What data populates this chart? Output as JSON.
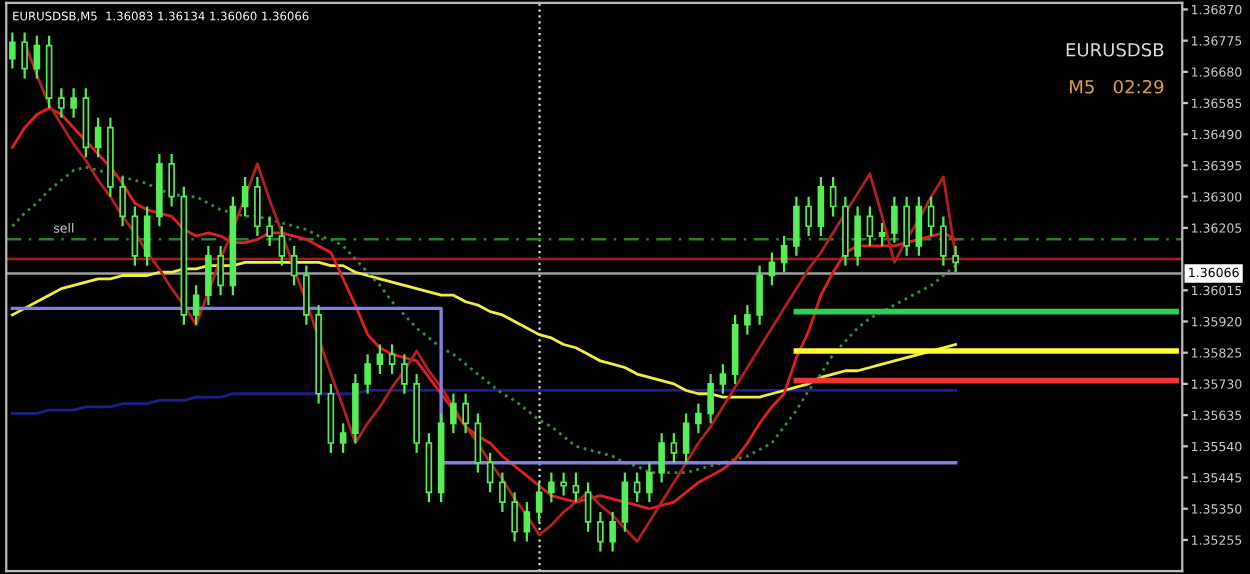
{
  "chart_data": {
    "type": "candlestick",
    "title": "EURUSDSB,M5  1.36083 1.36134 1.36060 1.36066",
    "annotations": [
      "EURUSDSB",
      "M5   02:29"
    ],
    "categories": [
      null,
      null,
      null,
      null,
      null,
      null,
      null,
      null,
      null,
      null,
      null,
      null,
      null,
      null,
      null,
      null,
      null,
      null,
      null,
      null,
      null,
      null,
      null,
      null,
      null,
      null,
      null,
      null,
      null,
      null,
      null,
      null,
      null,
      null,
      null,
      null,
      null,
      null,
      null,
      null,
      null,
      null,
      null,
      null,
      null,
      null,
      null,
      null,
      null,
      null,
      null,
      null,
      null,
      null,
      null,
      null,
      null,
      null,
      null,
      null,
      null,
      null,
      null,
      null,
      null,
      null,
      null,
      null,
      null,
      null,
      null,
      null,
      null,
      null,
      null,
      null,
      null,
      null,
      null,
      null,
      null,
      null,
      null,
      null,
      null,
      null,
      null,
      null,
      null,
      null,
      null,
      null,
      null,
      null,
      null,
      null
    ],
    "color": "#55ee55",
    "ohlc": [
      [
        1.3672,
        1.368,
        1.3669,
        1.3677
      ],
      [
        1.3677,
        1.368,
        1.3666,
        1.3669
      ],
      [
        1.3669,
        1.3679,
        1.3666,
        1.3676
      ],
      [
        1.3676,
        1.3679,
        1.3657,
        1.366
      ],
      [
        1.366,
        1.3663,
        1.3654,
        1.3657
      ],
      [
        1.3657,
        1.3663,
        1.3654,
        1.366
      ],
      [
        1.366,
        1.3663,
        1.3642,
        1.3645
      ],
      [
        1.3645,
        1.3654,
        1.3642,
        1.3651
      ],
      [
        1.3651,
        1.3654,
        1.363,
        1.3633
      ],
      [
        1.3633,
        1.3636,
        1.3621,
        1.3624
      ],
      [
        1.3624,
        1.3627,
        1.3609,
        1.3612
      ],
      [
        1.3612,
        1.3627,
        1.3609,
        1.3624
      ],
      [
        1.3624,
        1.3643,
        1.3621,
        1.364
      ],
      [
        1.364,
        1.3643,
        1.3627,
        1.363
      ],
      [
        1.363,
        1.3633,
        1.3591,
        1.3594
      ],
      [
        1.3594,
        1.3603,
        1.3591,
        1.36
      ],
      [
        1.36,
        1.3615,
        1.3597,
        1.3612
      ],
      [
        1.3612,
        1.3615,
        1.36,
        1.3603
      ],
      [
        1.3603,
        1.363,
        1.36,
        1.3627
      ],
      [
        1.3627,
        1.3636,
        1.3624,
        1.3633
      ],
      [
        1.3633,
        1.3636,
        1.3618,
        1.3621
      ],
      [
        1.3621,
        1.3624,
        1.3615,
        1.3618
      ],
      [
        1.3618,
        1.3621,
        1.3609,
        1.3612
      ],
      [
        1.3612,
        1.3615,
        1.3603,
        1.3606
      ],
      [
        1.3606,
        1.3609,
        1.3591,
        1.3594
      ],
      [
        1.3594,
        1.3597,
        1.3567,
        1.357
      ],
      [
        1.357,
        1.3573,
        1.3552,
        1.3555
      ],
      [
        1.3555,
        1.3561,
        1.3552,
        1.3558
      ],
      [
        1.3558,
        1.3576,
        1.3555,
        1.3573
      ],
      [
        1.3573,
        1.3582,
        1.357,
        1.3579
      ],
      [
        1.3579,
        1.3585,
        1.3576,
        1.3582
      ],
      [
        1.3582,
        1.3585,
        1.3576,
        1.3579
      ],
      [
        1.3579,
        1.3582,
        1.357,
        1.3573
      ],
      [
        1.3573,
        1.3576,
        1.3552,
        1.3555
      ],
      [
        1.3555,
        1.3558,
        1.3537,
        1.354
      ],
      [
        1.354,
        1.3564,
        1.3537,
        1.3561
      ],
      [
        1.3561,
        1.357,
        1.3558,
        1.3567
      ],
      [
        1.3567,
        1.357,
        1.3558,
        1.3561
      ],
      [
        1.3561,
        1.3564,
        1.3546,
        1.3549
      ],
      [
        1.3549,
        1.3552,
        1.354,
        1.3543
      ],
      [
        1.3543,
        1.3546,
        1.3534,
        1.3537
      ],
      [
        1.3537,
        1.354,
        1.3525,
        1.3528
      ],
      [
        1.3528,
        1.3537,
        1.3525,
        1.3534
      ],
      [
        1.3534,
        1.3543,
        1.3531,
        1.354
      ],
      [
        1.354,
        1.3546,
        1.3537,
        1.3543
      ],
      [
        1.3543,
        1.3546,
        1.3539,
        1.3542
      ],
      [
        1.3542,
        1.3546,
        1.3537,
        1.354
      ],
      [
        1.354,
        1.3543,
        1.3528,
        1.3531
      ],
      [
        1.3531,
        1.3534,
        1.3522,
        1.3525
      ],
      [
        1.3525,
        1.3534,
        1.3522,
        1.3531
      ],
      [
        1.3531,
        1.3546,
        1.3528,
        1.3543
      ],
      [
        1.3543,
        1.3546,
        1.3537,
        1.354
      ],
      [
        1.354,
        1.3549,
        1.3537,
        1.3546
      ],
      [
        1.3546,
        1.3558,
        1.3543,
        1.3555
      ],
      [
        1.3555,
        1.3558,
        1.3549,
        1.3552
      ],
      [
        1.3552,
        1.3564,
        1.3549,
        1.3561
      ],
      [
        1.3561,
        1.3567,
        1.3558,
        1.3564
      ],
      [
        1.3564,
        1.3576,
        1.3561,
        1.3573
      ],
      [
        1.3573,
        1.3579,
        1.357,
        1.3576
      ],
      [
        1.3576,
        1.3594,
        1.3573,
        1.3591
      ],
      [
        1.3591,
        1.3597,
        1.3588,
        1.3594
      ],
      [
        1.3594,
        1.3609,
        1.3591,
        1.3606
      ],
      [
        1.3606,
        1.3613,
        1.3603,
        1.361
      ],
      [
        1.361,
        1.3618,
        1.3607,
        1.3615
      ],
      [
        1.3615,
        1.363,
        1.3612,
        1.3627
      ],
      [
        1.3627,
        1.363,
        1.3618,
        1.3621
      ],
      [
        1.3621,
        1.3636,
        1.3618,
        1.3633
      ],
      [
        1.3633,
        1.3636,
        1.3624,
        1.3627
      ],
      [
        1.3627,
        1.363,
        1.3609,
        1.3612
      ],
      [
        1.3612,
        1.3627,
        1.3609,
        1.3624
      ],
      [
        1.3624,
        1.3627,
        1.3615,
        1.3618
      ],
      [
        1.3618,
        1.3622,
        1.3615,
        1.3619
      ],
      [
        1.3619,
        1.363,
        1.3616,
        1.3627
      ],
      [
        1.3627,
        1.363,
        1.3612,
        1.3615
      ],
      [
        1.3615,
        1.363,
        1.3612,
        1.3627
      ],
      [
        1.3627,
        1.363,
        1.3618,
        1.3621
      ],
      [
        1.3621,
        1.3624,
        1.3609,
        1.3612
      ],
      [
        1.3612,
        1.3615,
        1.3607,
        1.361
      ],
      null,
      null,
      null,
      null,
      null,
      null,
      null,
      null,
      null,
      null,
      null,
      null,
      null,
      null,
      null,
      null,
      null,
      null
    ],
    "series": [
      {
        "type": "line",
        "color": "#1e1e8c",
        "line_style": "solid",
        "values": [
          1.3564,
          1.3564,
          1.3564,
          1.3565,
          1.3565,
          1.3565,
          1.3566,
          1.3566,
          1.3566,
          1.3567,
          1.3567,
          1.3567,
          1.3568,
          1.3568,
          1.3568,
          1.3569,
          1.3569,
          1.3569,
          1.357,
          1.357,
          1.357,
          1.357,
          1.357,
          1.357,
          1.357,
          1.357,
          1.357,
          1.357,
          1.357,
          1.3571,
          1.3571,
          1.3571,
          1.3571,
          1.3571,
          1.3571,
          1.3571,
          1.3571,
          1.3571,
          1.3571,
          1.3571,
          1.3571,
          1.3571,
          1.3571,
          1.3571,
          1.3571,
          1.3571,
          1.3571,
          1.3571,
          1.3571,
          1.3571,
          1.3571,
          1.3571,
          1.3571,
          1.3571,
          1.3571,
          1.3571,
          1.3571,
          1.3571,
          1.3571,
          1.3571,
          1.3571,
          1.3571,
          1.3571,
          1.3571,
          1.3571,
          1.3571,
          1.3571,
          1.3571,
          1.3571,
          1.3571,
          1.3571,
          1.3571,
          1.3571,
          1.3571,
          1.3571,
          1.3571,
          1.3571,
          1.3571,
          null,
          null,
          null,
          null,
          null,
          null,
          null,
          null,
          null,
          null,
          null,
          null,
          null,
          null,
          null,
          null,
          null,
          null
        ]
      },
      {
        "type": "line",
        "color": "#eeee44",
        "line_style": "solid",
        "values": [
          1.3594,
          1.3596,
          1.3598,
          1.36,
          1.3602,
          1.3603,
          1.3604,
          1.3605,
          1.3605,
          1.3606,
          1.3606,
          1.3606,
          1.3607,
          1.3607,
          1.3608,
          1.3608,
          1.3609,
          1.3609,
          1.3609,
          1.361,
          1.361,
          1.361,
          1.361,
          1.361,
          1.361,
          1.361,
          1.3609,
          1.3609,
          1.3607,
          1.3606,
          1.3605,
          1.3604,
          1.3603,
          1.3602,
          1.3601,
          1.36,
          1.36,
          1.3598,
          1.3597,
          1.3595,
          1.3594,
          1.3592,
          1.359,
          1.3588,
          1.3587,
          1.3585,
          1.3584,
          1.3582,
          1.358,
          1.3579,
          1.3578,
          1.3576,
          1.3575,
          1.3574,
          1.3573,
          1.3571,
          1.357,
          1.357,
          1.3569,
          1.3569,
          1.3569,
          1.3569,
          1.357,
          1.3571,
          1.3572,
          1.3573,
          1.3575,
          1.3576,
          1.3577,
          1.3577,
          1.3578,
          1.3579,
          1.358,
          1.3581,
          1.3582,
          1.3583,
          1.3584,
          1.3585,
          null,
          null,
          null,
          null,
          null,
          null,
          null,
          null,
          null,
          null,
          null,
          null,
          null,
          null,
          null,
          null,
          null,
          null
        ]
      },
      {
        "type": "line",
        "color": "#3c8c3c",
        "line_style": "dotted",
        "values": [
          1.3621,
          1.3625,
          1.3628,
          1.3632,
          1.3635,
          1.3638,
          1.3639,
          1.3638,
          1.3637,
          1.3636,
          1.3635,
          1.3634,
          1.3632,
          1.3631,
          1.363,
          1.363,
          1.3628,
          1.3626,
          1.3625,
          1.3624,
          1.3624,
          1.3623,
          1.3622,
          1.3621,
          1.362,
          1.3618,
          1.3617,
          1.3615,
          1.3611,
          1.3607,
          1.3603,
          1.3598,
          1.3594,
          1.359,
          1.3587,
          1.3584,
          1.3582,
          1.3579,
          1.3576,
          1.3573,
          1.357,
          1.3568,
          1.3565,
          1.3562,
          1.356,
          1.3557,
          1.3554,
          1.3553,
          1.3552,
          1.3551,
          1.3549,
          1.3548,
          1.3546,
          1.3546,
          1.3546,
          1.3546,
          1.3547,
          1.3548,
          1.3549,
          1.355,
          1.3551,
          1.3553,
          1.3555,
          1.356,
          1.3565,
          1.3571,
          1.3576,
          1.3582,
          1.3586,
          1.359,
          1.3593,
          1.3595,
          1.3597,
          1.3599,
          1.3601,
          1.3603,
          1.3606,
          1.3609,
          null,
          null,
          null,
          null,
          null,
          null,
          null,
          null,
          null,
          null,
          null,
          null,
          null,
          null,
          null,
          null,
          null,
          null
        ]
      },
      {
        "type": "line",
        "color": "#e02020",
        "line_style": "solid",
        "values": [
          1.3645,
          1.3651,
          1.3655,
          1.3657,
          1.3655,
          1.3651,
          1.3647,
          1.3643,
          1.3639,
          1.3634,
          1.3628,
          1.3626,
          1.3625,
          1.3624,
          1.362,
          1.3618,
          1.3619,
          1.3618,
          1.3616,
          1.3616,
          1.3617,
          1.3619,
          1.3619,
          1.3618,
          1.3617,
          1.3615,
          1.3613,
          1.3605,
          1.3597,
          1.3588,
          1.3584,
          1.3582,
          1.3581,
          1.358,
          1.3575,
          1.357,
          1.3565,
          1.356,
          1.3557,
          1.3555,
          1.3551,
          1.3548,
          1.3545,
          1.3542,
          1.3539,
          1.3538,
          1.3537,
          1.3538,
          1.3539,
          1.3538,
          1.3537,
          1.3536,
          1.3535,
          1.3536,
          1.3537,
          1.354,
          1.3543,
          1.3545,
          1.3547,
          1.355,
          1.3555,
          1.3561,
          1.3566,
          1.357,
          1.3581,
          1.3589,
          1.36,
          1.3607,
          1.3613,
          1.3615,
          1.3615,
          1.3615,
          1.3615,
          1.3616,
          1.3617,
          1.3618,
          1.3619,
          1.3617,
          null,
          null,
          null,
          null,
          null,
          null,
          null,
          null,
          null,
          null,
          null,
          null,
          null,
          null,
          null,
          null,
          null,
          null
        ]
      },
      {
        "type": "line",
        "color": "#b02020",
        "line_style": "solid",
        "values": [
          null,
          1.3677,
          1.3667,
          1.3658,
          1.3652,
          1.3646,
          1.3641,
          1.3635,
          1.363,
          1.3624,
          1.3619,
          1.3613,
          1.3608,
          1.3602,
          1.3597,
          1.3591,
          1.3601,
          1.3611,
          1.362,
          1.363,
          1.364,
          1.3629,
          1.3619,
          1.3608,
          1.3598,
          1.3587,
          1.3576,
          1.3566,
          1.3555,
          1.3561,
          1.3566,
          1.3572,
          1.3577,
          1.3583,
          1.3577,
          1.3572,
          1.3566,
          1.356,
          1.3555,
          1.3549,
          1.3544,
          1.3538,
          1.3533,
          1.3527,
          1.353,
          1.3534,
          1.3537,
          1.354,
          1.3536,
          1.3533,
          1.3529,
          1.3525,
          1.3531,
          1.3537,
          1.3543,
          1.3549,
          1.3555,
          1.356,
          1.3566,
          1.3572,
          1.3578,
          1.3584,
          1.359,
          1.3596,
          1.3602,
          1.3608,
          1.3613,
          1.3619,
          1.3625,
          1.3631,
          1.3637,
          1.3624,
          1.361,
          1.3617,
          1.3623,
          1.363,
          1.3636,
          1.3612,
          null,
          null,
          null,
          null,
          null,
          null,
          null,
          null,
          null,
          null,
          null,
          null,
          null,
          null,
          null,
          null,
          null,
          null
        ]
      },
      {
        "type": "step",
        "color": "#8080e0",
        "line_style": "solid",
        "values": [
          1.3596,
          1.3596,
          1.3596,
          1.3596,
          1.3596,
          1.3596,
          1.3596,
          1.3596,
          1.3596,
          1.3596,
          1.3596,
          1.3596,
          1.3596,
          1.3596,
          1.3596,
          1.3596,
          1.3596,
          1.3596,
          1.3596,
          1.3596,
          1.3596,
          1.3596,
          1.3596,
          1.3596,
          1.3596,
          1.3596,
          1.3596,
          1.3596,
          1.3596,
          1.3596,
          1.3596,
          1.3596,
          1.3596,
          1.3596,
          1.3596,
          1.3596,
          1.3549,
          1.3549,
          1.3549,
          1.3549,
          1.3549,
          1.3549,
          1.3549,
          1.3549,
          1.3549,
          1.3549,
          1.3549,
          1.3549,
          1.3549,
          1.3549,
          1.3549,
          1.3549,
          1.3549,
          1.3549,
          1.3549,
          1.3549,
          1.3549,
          1.3549,
          1.3549,
          1.3549,
          1.3549,
          1.3549,
          1.3549,
          1.3549,
          1.3549,
          1.3549,
          1.3549,
          1.3549,
          1.3549,
          1.3549,
          1.3549,
          1.3549,
          1.3549,
          1.3549,
          1.3549,
          1.3549,
          1.3549,
          1.3549,
          null,
          null,
          null,
          null,
          null,
          null,
          null,
          null,
          null,
          null,
          null,
          null,
          null,
          null,
          null,
          null,
          null,
          null
        ]
      },
      {
        "type": "line",
        "color": "#33cc55",
        "line_style": "solid",
        "values": [
          null,
          null,
          null,
          null,
          null,
          null,
          null,
          null,
          null,
          null,
          null,
          null,
          null,
          null,
          null,
          null,
          null,
          null,
          null,
          null,
          null,
          null,
          null,
          null,
          null,
          null,
          null,
          null,
          null,
          null,
          null,
          null,
          null,
          null,
          null,
          null,
          null,
          null,
          null,
          null,
          null,
          null,
          null,
          null,
          null,
          null,
          null,
          null,
          null,
          null,
          null,
          null,
          null,
          null,
          null,
          null,
          null,
          null,
          null,
          null,
          null,
          null,
          null,
          null,
          1.3595,
          1.3595,
          1.3595,
          1.3595,
          1.3595,
          1.3595,
          1.3595,
          1.3595,
          1.3595,
          1.3595,
          1.3595,
          1.3595,
          1.3595,
          1.3595,
          1.3595,
          1.3595,
          1.3595,
          1.3595,
          1.3595,
          1.3595,
          1.3595,
          1.3595,
          1.3595,
          1.3595,
          1.3595,
          1.3595,
          1.3595,
          1.3595,
          1.3595,
          1.3595,
          1.3595,
          1.3595
        ]
      },
      {
        "type": "line",
        "color": "#ffff33",
        "line_style": "solid",
        "values": [
          null,
          null,
          null,
          null,
          null,
          null,
          null,
          null,
          null,
          null,
          null,
          null,
          null,
          null,
          null,
          null,
          null,
          null,
          null,
          null,
          null,
          null,
          null,
          null,
          null,
          null,
          null,
          null,
          null,
          null,
          null,
          null,
          null,
          null,
          null,
          null,
          null,
          null,
          null,
          null,
          null,
          null,
          null,
          null,
          null,
          null,
          null,
          null,
          null,
          null,
          null,
          null,
          null,
          null,
          null,
          null,
          null,
          null,
          null,
          null,
          null,
          null,
          null,
          null,
          1.3583,
          1.3583,
          1.3583,
          1.3583,
          1.3583,
          1.3583,
          1.3583,
          1.3583,
          1.3583,
          1.3583,
          1.3583,
          1.3583,
          1.3583,
          1.3583,
          1.3583,
          1.3583,
          1.3583,
          1.3583,
          1.3583,
          1.3583,
          1.3583,
          1.3583,
          1.3583,
          1.3583,
          1.3583,
          1.3583,
          1.3583,
          1.3583,
          1.3583,
          1.3583,
          1.3583,
          1.3583
        ]
      },
      {
        "type": "line",
        "color": "#ee3333",
        "line_style": "solid",
        "values": [
          null,
          null,
          null,
          null,
          null,
          null,
          null,
          null,
          null,
          null,
          null,
          null,
          null,
          null,
          null,
          null,
          null,
          null,
          null,
          null,
          null,
          null,
          null,
          null,
          null,
          null,
          null,
          null,
          null,
          null,
          null,
          null,
          null,
          null,
          null,
          null,
          null,
          null,
          null,
          null,
          null,
          null,
          null,
          null,
          null,
          null,
          null,
          null,
          null,
          null,
          null,
          null,
          null,
          null,
          null,
          null,
          null,
          null,
          null,
          null,
          null,
          null,
          null,
          null,
          1.3574,
          1.3574,
          1.3574,
          1.3574,
          1.3574,
          1.3574,
          1.3574,
          1.3574,
          1.3574,
          1.3574,
          1.3574,
          1.3574,
          1.3574,
          1.3574,
          1.3574,
          1.3574,
          1.3574,
          1.3574,
          1.3574,
          1.3574,
          1.3574,
          1.3574,
          1.3574,
          1.3574,
          1.3574,
          1.3574,
          1.3574,
          1.3574,
          1.3574,
          1.3574,
          1.3574,
          1.3574
        ]
      }
    ],
    "ref_lines": [
      {
        "axis": "y",
        "value": 1.3617,
        "label": "sell",
        "color": "#2e7d2e",
        "line_style": "dashed"
      },
      {
        "axis": "y",
        "value": 1.3611,
        "color": "#a02020",
        "line_style": "solid"
      },
      {
        "axis": "y",
        "value": 1.36066,
        "label": "1.36066",
        "color": "#a0a0a0",
        "line_style": "solid"
      }
    ],
    "ylim": [
      1.3516,
      1.3689
    ],
    "yticks": [
      {
        "value": 1.3687,
        "label": "1.36870"
      },
      {
        "value": 1.36775,
        "label": "1.36775"
      },
      {
        "value": 1.3668,
        "label": "1.36680"
      },
      {
        "value": 1.36585,
        "label": "1.36585"
      },
      {
        "value": 1.3649,
        "label": "1.36490"
      },
      {
        "value": 1.36395,
        "label": "1.36395"
      },
      {
        "value": 1.363,
        "label": "1.36300"
      },
      {
        "value": 1.36205,
        "label": "1.36205"
      },
      {
        "value": 1.36015,
        "label": "1.36015"
      },
      {
        "value": 1.3592,
        "label": "1.35920"
      },
      {
        "value": 1.35825,
        "label": "1.35825"
      },
      {
        "value": 1.3573,
        "label": "1.35730"
      },
      {
        "value": 1.35635,
        "label": "1.35635"
      },
      {
        "value": 1.3554,
        "label": "1.35540"
      },
      {
        "value": 1.35445,
        "label": "1.35445"
      },
      {
        "value": 1.3535,
        "label": "1.35350"
      },
      {
        "value": 1.35255,
        "label": "1.35255"
      }
    ],
    "tick_labels": "y",
    "grid": false,
    "legend": false
  }
}
